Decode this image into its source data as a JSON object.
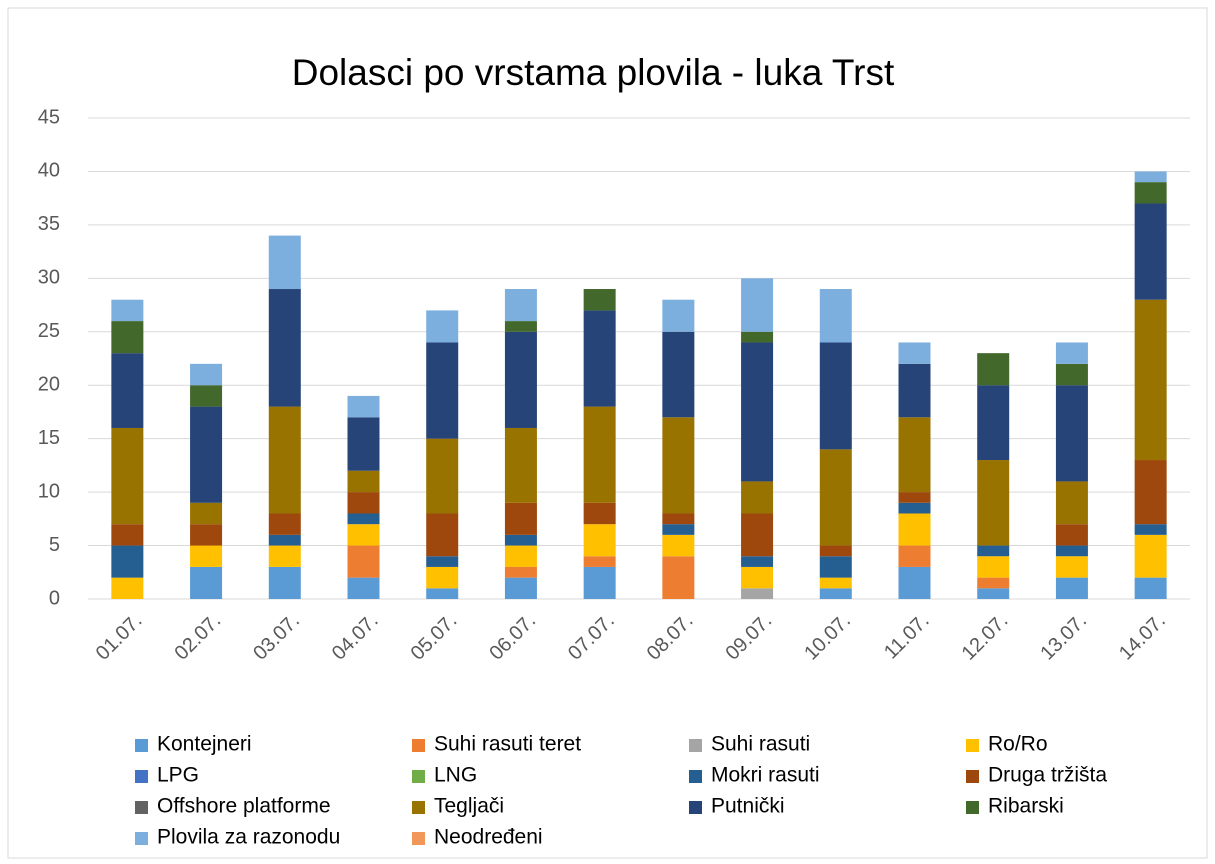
{
  "chart_data": {
    "type": "stacked_bar",
    "title": "Dolasci po vrstama plovila - luka Trst",
    "categories": [
      "01.07.",
      "02.07.",
      "03.07.",
      "04.07.",
      "05.07.",
      "06.07.",
      "07.07.",
      "08.07.",
      "09.07.",
      "10.07.",
      "11.07.",
      "12.07.",
      "13.07.",
      "14.07."
    ],
    "series": [
      {
        "name": "Kontejneri",
        "color": "#5b9bd5",
        "values": [
          0,
          3,
          3,
          2,
          1,
          2,
          3,
          0,
          0,
          1,
          3,
          1,
          2,
          2
        ]
      },
      {
        "name": "Suhi rasuti teret",
        "color": "#ed7d31",
        "values": [
          0,
          0,
          0,
          3,
          0,
          1,
          1,
          4,
          0,
          0,
          2,
          1,
          0,
          0
        ]
      },
      {
        "name": "Suhi rasuti",
        "color": "#a5a5a5",
        "values": [
          0,
          0,
          0,
          0,
          0,
          0,
          0,
          0,
          1,
          0,
          0,
          0,
          0,
          0
        ]
      },
      {
        "name": "Ro/Ro",
        "color": "#ffc000",
        "values": [
          2,
          2,
          2,
          2,
          2,
          2,
          3,
          2,
          2,
          1,
          3,
          2,
          2,
          4
        ]
      },
      {
        "name": "LPG",
        "color": "#4472c4",
        "values": [
          0,
          0,
          0,
          0,
          0,
          0,
          0,
          0,
          0,
          0,
          0,
          0,
          0,
          0
        ]
      },
      {
        "name": "LNG",
        "color": "#70ad47",
        "values": [
          0,
          0,
          0,
          0,
          0,
          0,
          0,
          0,
          0,
          0,
          0,
          0,
          0,
          0
        ]
      },
      {
        "name": "Mokri rasuti",
        "color": "#255e91",
        "values": [
          3,
          0,
          1,
          1,
          1,
          1,
          0,
          1,
          1,
          2,
          1,
          1,
          1,
          1
        ]
      },
      {
        "name": "Druga tržišta",
        "color": "#9e480e",
        "values": [
          2,
          2,
          2,
          2,
          4,
          3,
          2,
          1,
          4,
          1,
          1,
          0,
          2,
          6
        ]
      },
      {
        "name": "Offshore platforme",
        "color": "#636363",
        "values": [
          0,
          0,
          0,
          0,
          0,
          0,
          0,
          0,
          0,
          0,
          0,
          0,
          0,
          0
        ]
      },
      {
        "name": "Tegljači",
        "color": "#997300",
        "values": [
          9,
          2,
          10,
          2,
          7,
          7,
          9,
          9,
          3,
          9,
          7,
          8,
          4,
          15
        ]
      },
      {
        "name": "Putnički",
        "color": "#264478",
        "values": [
          7,
          9,
          11,
          5,
          9,
          9,
          9,
          8,
          13,
          10,
          5,
          7,
          9,
          9
        ]
      },
      {
        "name": "Ribarski",
        "color": "#43682b",
        "values": [
          3,
          2,
          0,
          0,
          0,
          1,
          2,
          0,
          1,
          0,
          0,
          3,
          2,
          2
        ]
      },
      {
        "name": "Plovila za razonodu",
        "color": "#7cafdd",
        "values": [
          2,
          2,
          5,
          2,
          3,
          3,
          0,
          3,
          5,
          5,
          2,
          0,
          2,
          1
        ]
      },
      {
        "name": "Neodređeni",
        "color": "#f1975a",
        "values": [
          0,
          0,
          0,
          0,
          0,
          0,
          0,
          0,
          0,
          0,
          0,
          0,
          0,
          0
        ]
      }
    ],
    "ylim": [
      0,
      45
    ],
    "yticks": [
      0,
      5,
      10,
      15,
      20,
      25,
      30,
      35,
      40,
      45
    ],
    "grid": true
  }
}
